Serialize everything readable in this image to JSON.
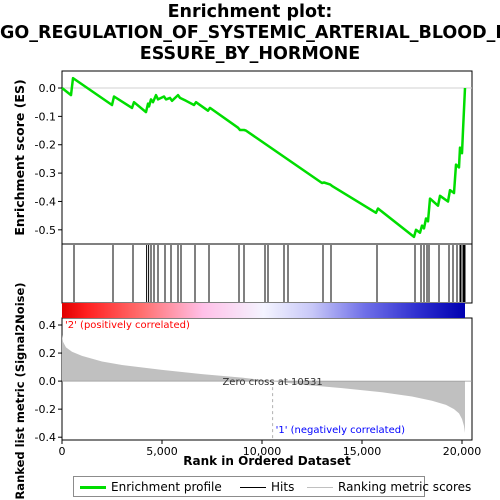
{
  "title_lines": [
    "Enrichment plot:",
    "GO_REGULATION_OF_SYSTEMIC_ARTERIAL_BLOOD_PR",
    "ESSURE_BY_HORMONE"
  ],
  "colors": {
    "es_line": "#00dd00",
    "hits": "#000000",
    "metric_fill": "#c0c0c0",
    "zero_line": "#b0b0b0",
    "pos_label": "#ff0000",
    "neg_label": "#0000ff"
  },
  "chart_data": {
    "type": "line",
    "xlabel": "Rank in Ordered Dataset",
    "ylabel_top": "Enrichment score (ES)",
    "ylabel_bottom": "Ranked list metric (Signal2Noise)",
    "x_ticks": [
      "0",
      "5,000",
      "10,000",
      "15,000",
      "20,000"
    ],
    "x_tick_values": [
      0,
      5000,
      10000,
      15000,
      20000
    ],
    "xlim": [
      0,
      20500
    ],
    "es_ticks": [
      "0.0",
      "-0.1",
      "-0.2",
      "-0.3",
      "-0.4",
      "-0.5"
    ],
    "es_tick_values": [
      0.0,
      -0.1,
      -0.2,
      -0.3,
      -0.4,
      -0.5
    ],
    "es_ylim": [
      -0.55,
      0.06
    ],
    "metric_ticks": [
      "0.4",
      "0.2",
      "0.0",
      "-0.2",
      "-0.4"
    ],
    "metric_tick_values": [
      0.4,
      0.2,
      0.0,
      -0.2,
      -0.4
    ],
    "metric_ylim": [
      -0.42,
      0.45
    ],
    "enrichment_profile": {
      "x": [
        0,
        450,
        550,
        2500,
        2600,
        3500,
        3600,
        4200,
        4300,
        4350,
        4450,
        4550,
        4700,
        4800,
        5100,
        5200,
        5400,
        5500,
        5800,
        5900,
        6200,
        6600,
        6700,
        7300,
        7400,
        8800,
        8900,
        9100,
        9200,
        13000,
        13100,
        13400,
        13500,
        15700,
        15800,
        17600,
        17700,
        17900,
        18000,
        18100,
        18200,
        18300,
        18400,
        18800,
        18900,
        19300,
        19400,
        19600,
        19700,
        19850,
        19900,
        20000,
        20050,
        20100,
        20150
      ],
      "y": [
        0.0,
        -0.025,
        0.035,
        -0.06,
        -0.03,
        -0.07,
        -0.05,
        -0.085,
        -0.055,
        -0.065,
        -0.04,
        -0.05,
        -0.025,
        -0.04,
        -0.03,
        -0.04,
        -0.035,
        -0.045,
        -0.025,
        -0.035,
        -0.045,
        -0.06,
        -0.05,
        -0.08,
        -0.07,
        -0.14,
        -0.148,
        -0.148,
        -0.15,
        -0.335,
        -0.333,
        -0.34,
        -0.345,
        -0.44,
        -0.425,
        -0.525,
        -0.5,
        -0.51,
        -0.485,
        -0.495,
        -0.46,
        -0.47,
        -0.39,
        -0.415,
        -0.38,
        -0.4,
        -0.36,
        -0.37,
        -0.27,
        -0.28,
        -0.21,
        -0.23,
        -0.15,
        -0.075,
        0.0
      ]
    },
    "hits": [
      600,
      2550,
      3550,
      4230,
      4330,
      4450,
      4600,
      4800,
      5150,
      5450,
      5800,
      5950,
      6650,
      7350,
      8850,
      9100,
      10150,
      10300,
      11100,
      11300,
      13050,
      13450,
      15750,
      17650,
      17950,
      18100,
      18250,
      18350,
      18850,
      19350,
      19550,
      19750,
      19900,
      19950,
      20050,
      20100,
      20150
    ],
    "ranking_metric": {
      "x": [
        0,
        50,
        200,
        500,
        1000,
        2000,
        3000,
        5000,
        7000,
        9000,
        10531,
        12000,
        14000,
        16000,
        17500,
        18500,
        19200,
        19600,
        19850,
        20000,
        20100,
        20150
      ],
      "y": [
        0.33,
        0.28,
        0.24,
        0.21,
        0.18,
        0.14,
        0.115,
        0.08,
        0.05,
        0.025,
        0.0,
        -0.025,
        -0.05,
        -0.08,
        -0.11,
        -0.14,
        -0.17,
        -0.2,
        -0.23,
        -0.27,
        -0.32,
        -0.37
      ]
    },
    "zero_cross_label": "Zero cross at 10531",
    "zero_cross_x": 10531,
    "pos_label": "'2' (positively correlated)",
    "neg_label": "'1' (negatively correlated)",
    "legend": [
      "Enrichment profile",
      "Hits",
      "Ranking metric scores"
    ]
  }
}
